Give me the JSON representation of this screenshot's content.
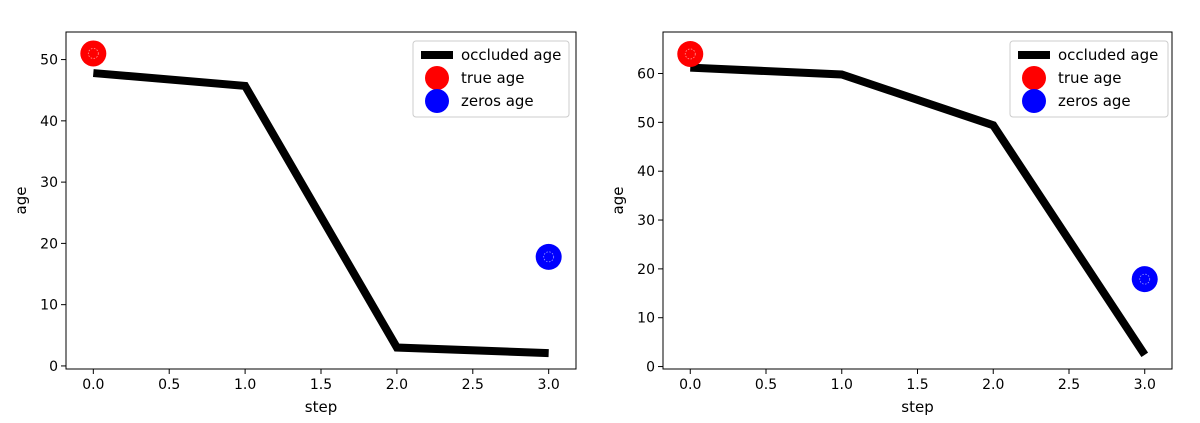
{
  "chart_data": [
    {
      "type": "line",
      "title": "",
      "xlabel": "step",
      "ylabel": "age",
      "xlim": [
        -0.18,
        3.18
      ],
      "ylim": [
        -0.5,
        54.5
      ],
      "xticks": [
        0.0,
        0.5,
        1.0,
        1.5,
        2.0,
        2.5,
        3.0
      ],
      "xtick_labels": [
        "0.0",
        "0.5",
        "1.0",
        "1.5",
        "2.0",
        "2.5",
        "3.0"
      ],
      "yticks": [
        0,
        10,
        20,
        30,
        40,
        50
      ],
      "ytick_labels": [
        "0",
        "10",
        "20",
        "30",
        "40",
        "50"
      ],
      "grid": false,
      "legend_position": "top-right",
      "series": [
        {
          "name": "occluded age",
          "kind": "line",
          "color": "#000000",
          "x": [
            0,
            1,
            2,
            3
          ],
          "y": [
            47.8,
            45.7,
            3.0,
            2.1
          ]
        },
        {
          "name": "true age",
          "kind": "point",
          "color": "#ff0000",
          "x": [
            0
          ],
          "y": [
            51.0
          ]
        },
        {
          "name": "zeros age",
          "kind": "point",
          "color": "#0000ff",
          "x": [
            3
          ],
          "y": [
            17.8
          ]
        }
      ]
    },
    {
      "type": "line",
      "title": "",
      "xlabel": "step",
      "ylabel": "age",
      "xlim": [
        -0.18,
        3.18
      ],
      "ylim": [
        -0.5,
        68.5
      ],
      "xticks": [
        0.0,
        0.5,
        1.0,
        1.5,
        2.0,
        2.5,
        3.0
      ],
      "xtick_labels": [
        "0.0",
        "0.5",
        "1.0",
        "1.5",
        "2.0",
        "2.5",
        "3.0"
      ],
      "yticks": [
        0,
        10,
        20,
        30,
        40,
        50,
        60
      ],
      "ytick_labels": [
        "0",
        "10",
        "20",
        "30",
        "40",
        "50",
        "60"
      ],
      "grid": false,
      "legend_position": "top-right",
      "series": [
        {
          "name": "occluded age",
          "kind": "line",
          "color": "#000000",
          "x": [
            0,
            1,
            2,
            3
          ],
          "y": [
            61.2,
            59.8,
            49.4,
            2.4
          ]
        },
        {
          "name": "true age",
          "kind": "point",
          "color": "#ff0000",
          "x": [
            0
          ],
          "y": [
            64.0
          ]
        },
        {
          "name": "zeros age",
          "kind": "point",
          "color": "#0000ff",
          "x": [
            3
          ],
          "y": [
            17.9
          ]
        }
      ]
    }
  ]
}
